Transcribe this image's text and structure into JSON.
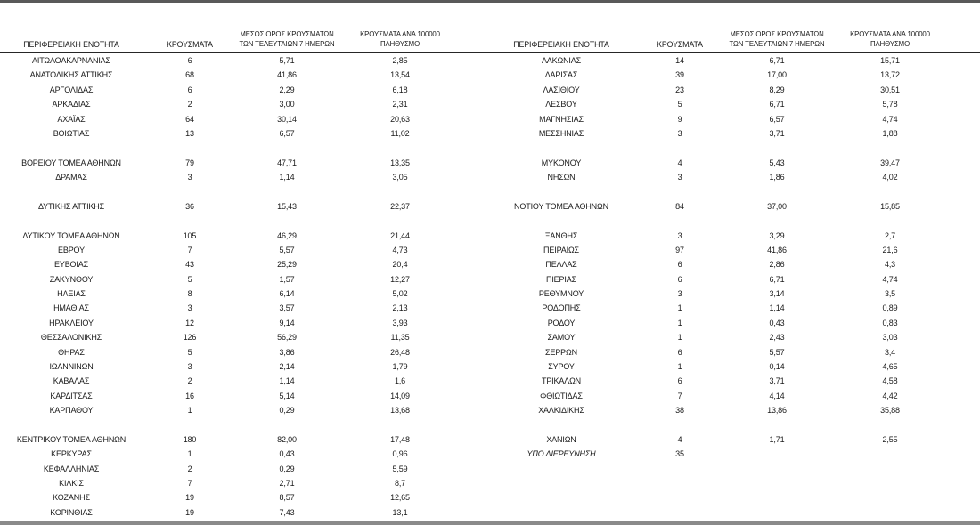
{
  "columns": {
    "region": "ΠΕΡΙΦΕΡΕΙΑΚΗ ΕΝΟΤΗΤΑ",
    "cases": "ΚΡΟΥΣΜΑΤΑ",
    "avg7_line1": "ΜΕΣΟΣ ΟΡΟΣ ΚΡΟΥΣΜΑΤΩΝ",
    "avg7_line2": "ΤΩΝ ΤΕΛΕΥΤΑΙΩΝ 7 ΗΜΕΡΩΝ",
    "per100k_line1": "ΚΡΟΥΣΜΑΤΑ ΑΝΑ 100000",
    "per100k_line2": "ΠΛΗΘΥΣΜΟ"
  },
  "colors": {
    "text": "#1a1a1a",
    "top_rule": "#595959",
    "header_rule": "#262626",
    "bottom_rule_dark": "#3f3f3f",
    "bottom_rule_gray": "#8a8a8a"
  },
  "tables": [
    {
      "id": "left",
      "rows": [
        [
          "ΑΙΤΩΛΟΑΚΑΡΝΑΝΙΑΣ",
          "6",
          "5,71",
          "2,85"
        ],
        [
          "ΑΝΑΤΟΛΙΚΗΣ ΑΤΤΙΚΗΣ",
          "68",
          "41,86",
          "13,54"
        ],
        [
          "ΑΡΓΟΛΙΔΑΣ",
          "6",
          "2,29",
          "6,18"
        ],
        [
          "ΑΡΚΑΔΙΑΣ",
          "2",
          "3,00",
          "2,31"
        ],
        [
          "ΑΧΑΪΑΣ",
          "64",
          "30,14",
          "20,63"
        ],
        [
          "ΒΟΙΩΤΙΑΣ",
          "13",
          "6,57",
          "11,02"
        ],
        null,
        [
          "ΒΟΡΕΙΟΥ ΤΟΜΕΑ ΑΘΗΝΩΝ",
          "79",
          "47,71",
          "13,35"
        ],
        [
          "ΔΡΑΜΑΣ",
          "3",
          "1,14",
          "3,05"
        ],
        null,
        [
          "ΔΥΤΙΚΗΣ ΑΤΤΙΚΗΣ",
          "36",
          "15,43",
          "22,37"
        ],
        null,
        [
          "ΔΥΤΙΚΟΥ ΤΟΜΕΑ ΑΘΗΝΩΝ",
          "105",
          "46,29",
          "21,44"
        ],
        [
          "ΕΒΡΟΥ",
          "7",
          "5,57",
          "4,73"
        ],
        [
          "ΕΥΒΟΙΑΣ",
          "43",
          "25,29",
          "20,4"
        ],
        [
          "ΖΑΚΥΝΘΟΥ",
          "5",
          "1,57",
          "12,27"
        ],
        [
          "ΗΛΕΙΑΣ",
          "8",
          "6,14",
          "5,02"
        ],
        [
          "ΗΜΑΘΙΑΣ",
          "3",
          "3,57",
          "2,13"
        ],
        [
          "ΗΡΑΚΛΕΙΟΥ",
          "12",
          "9,14",
          "3,93"
        ],
        [
          "ΘΕΣΣΑΛΟΝΙΚΗΣ",
          "126",
          "56,29",
          "11,35"
        ],
        [
          "ΘΗΡΑΣ",
          "5",
          "3,86",
          "26,48"
        ],
        [
          "ΙΩΑΝΝΙΝΩΝ",
          "3",
          "2,14",
          "1,79"
        ],
        [
          "ΚΑΒΑΛΑΣ",
          "2",
          "1,14",
          "1,6"
        ],
        [
          "ΚΑΡΔΙΤΣΑΣ",
          "16",
          "5,14",
          "14,09"
        ],
        [
          "ΚΑΡΠΑΘΟΥ",
          "1",
          "0,29",
          "13,68"
        ],
        null,
        [
          "ΚΕΝΤΡΙΚΟΥ ΤΟΜΕΑ ΑΘΗΝΩΝ",
          "180",
          "82,00",
          "17,48"
        ],
        [
          "ΚΕΡΚΥΡΑΣ",
          "1",
          "0,43",
          "0,96"
        ],
        [
          "ΚΕΦΑΛΛΗΝΙΑΣ",
          "2",
          "0,29",
          "5,59"
        ],
        [
          "ΚΙΛΚΙΣ",
          "7",
          "2,71",
          "8,7"
        ],
        [
          "ΚΟΖΑΝΗΣ",
          "19",
          "8,57",
          "12,65"
        ],
        [
          "ΚΟΡΙΝΘΙΑΣ",
          "19",
          "7,43",
          "13,1"
        ]
      ]
    },
    {
      "id": "right",
      "rows": [
        [
          "ΛΑΚΩΝΙΑΣ",
          "14",
          "6,71",
          "15,71"
        ],
        [
          "ΛΑΡΙΣΑΣ",
          "39",
          "17,00",
          "13,72"
        ],
        [
          "ΛΑΣΙΘΙΟΥ",
          "23",
          "8,29",
          "30,51"
        ],
        [
          "ΛΕΣΒΟΥ",
          "5",
          "6,71",
          "5,78"
        ],
        [
          "ΜΑΓΝΗΣΙΑΣ",
          "9",
          "6,57",
          "4,74"
        ],
        [
          "ΜΕΣΣΗΝΙΑΣ",
          "3",
          "3,71",
          "1,88"
        ],
        null,
        [
          "ΜΥΚΟΝΟΥ",
          "4",
          "5,43",
          "39,47"
        ],
        [
          "ΝΗΣΩΝ",
          "3",
          "1,86",
          "4,02"
        ],
        null,
        [
          "ΝΟΤΙΟΥ ΤΟΜΕΑ ΑΘΗΝΩΝ",
          "84",
          "37,00",
          "15,85"
        ],
        null,
        [
          "ΞΑΝΘΗΣ",
          "3",
          "3,29",
          "2,7"
        ],
        [
          "ΠΕΙΡΑΙΩΣ",
          "97",
          "41,86",
          "21,6"
        ],
        [
          "ΠΕΛΛΑΣ",
          "6",
          "2,86",
          "4,3"
        ],
        [
          "ΠΙΕΡΙΑΣ",
          "6",
          "6,71",
          "4,74"
        ],
        [
          "ΡΕΘΥΜΝΟΥ",
          "3",
          "3,14",
          "3,5"
        ],
        [
          "ΡΟΔΟΠΗΣ",
          "1",
          "1,14",
          "0,89"
        ],
        [
          "ΡΟΔΟΥ",
          "1",
          "0,43",
          "0,83"
        ],
        [
          "ΣΑΜΟΥ",
          "1",
          "2,43",
          "3,03"
        ],
        [
          "ΣΕΡΡΩΝ",
          "6",
          "5,57",
          "3,4"
        ],
        [
          "ΣΥΡΟΥ",
          "1",
          "0,14",
          "4,65"
        ],
        [
          "ΤΡΙΚΑΛΩΝ",
          "6",
          "3,71",
          "4,58"
        ],
        [
          "ΦΘΙΩΤΙΔΑΣ",
          "7",
          "4,14",
          "4,42"
        ],
        [
          "ΧΑΛΚΙΔΙΚΗΣ",
          "38",
          "13,86",
          "35,88"
        ],
        null,
        [
          "ΧΑΝΙΩΝ",
          "4",
          "1,71",
          "2,55"
        ],
        {
          "cells": [
            "ΥΠΟ ΔΙΕΡΕΥΝΗΣΗ",
            "35",
            "",
            ""
          ],
          "italic": true
        },
        null,
        null,
        null,
        null
      ]
    }
  ]
}
